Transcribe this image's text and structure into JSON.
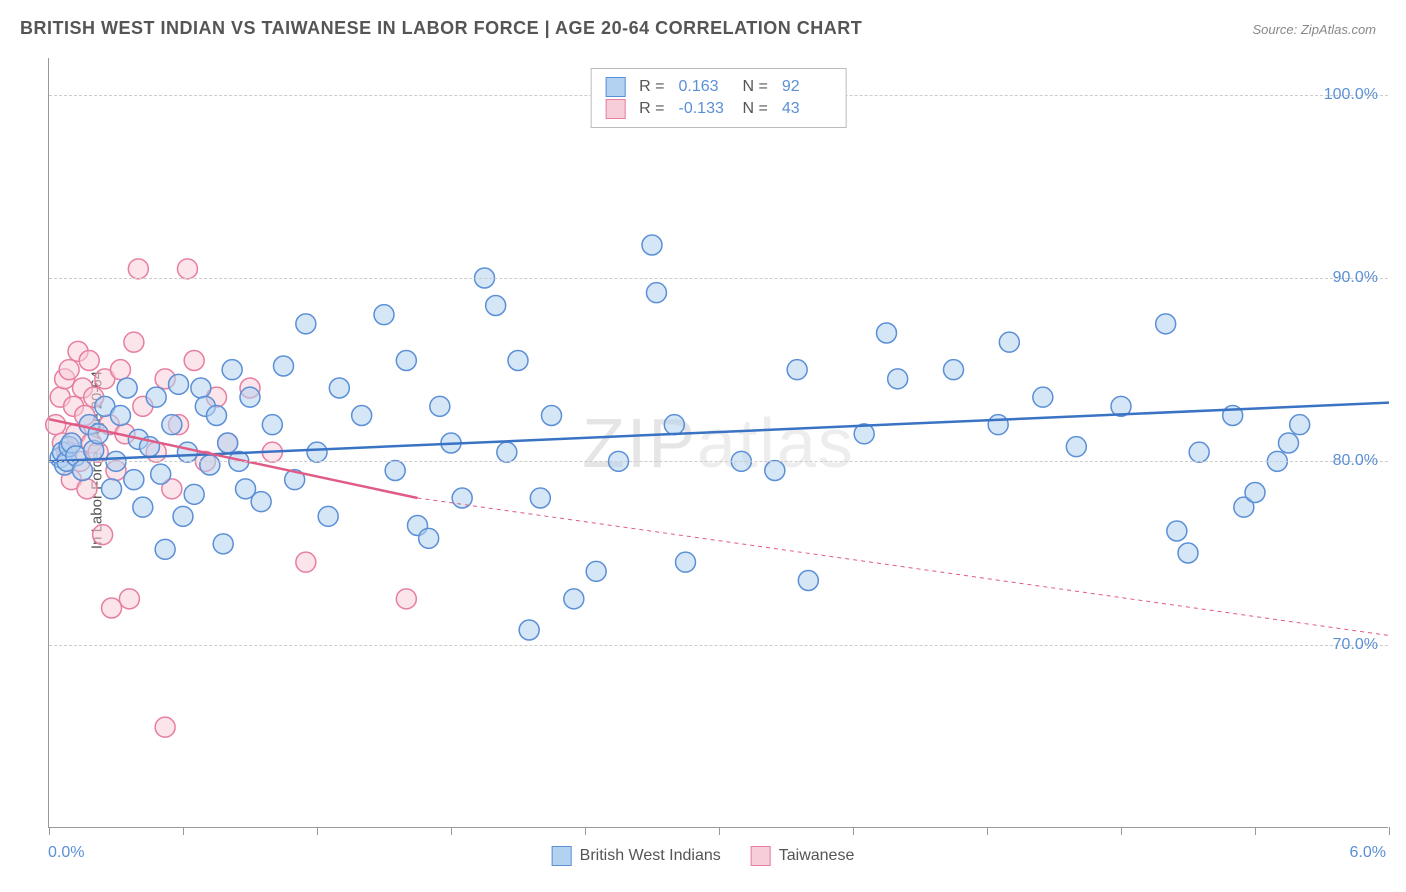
{
  "title": "BRITISH WEST INDIAN VS TAIWANESE IN LABOR FORCE | AGE 20-64 CORRELATION CHART",
  "source": "Source: ZipAtlas.com",
  "watermark_a": "ZIP",
  "watermark_b": "atlas",
  "y_axis_label": "In Labor Force | Age 20-64",
  "chart": {
    "type": "scatter",
    "xlim": [
      0.0,
      6.0
    ],
    "ylim": [
      60.0,
      102.0
    ],
    "y_ticks": [
      70.0,
      80.0,
      90.0,
      100.0
    ],
    "y_tick_labels": [
      "70.0%",
      "80.0%",
      "90.0%",
      "100.0%"
    ],
    "x_ticks": [
      0.0,
      0.6,
      1.2,
      1.8,
      2.4,
      3.0,
      3.6,
      4.2,
      4.8,
      5.4,
      6.0
    ],
    "x_tick_labels_shown": {
      "left": "0.0%",
      "right": "6.0%"
    },
    "background_color": "#ffffff",
    "grid_color": "#cccccc",
    "grid_dash": "4,4",
    "marker_radius": 10,
    "marker_stroke_width": 1.5,
    "trend_line_width": 2.5,
    "series": [
      {
        "name": "British West Indians",
        "fill": "#b3d1f0",
        "stroke": "#5b8fd6",
        "fill_opacity": 0.55,
        "r_value": "0.163",
        "n_value": "92",
        "trend": {
          "x1": 0.0,
          "y1": 80.0,
          "x2": 6.0,
          "y2": 83.2,
          "color": "#3a73c4",
          "dash": "none"
        },
        "points": [
          [
            0.05,
            80.2
          ],
          [
            0.06,
            80.5
          ],
          [
            0.07,
            79.8
          ],
          [
            0.08,
            80.0
          ],
          [
            0.09,
            80.8
          ],
          [
            0.1,
            81.0
          ],
          [
            0.12,
            80.3
          ],
          [
            0.15,
            79.5
          ],
          [
            0.18,
            82.0
          ],
          [
            0.2,
            80.6
          ],
          [
            0.22,
            81.5
          ],
          [
            0.25,
            83.0
          ],
          [
            0.28,
            78.5
          ],
          [
            0.3,
            80.0
          ],
          [
            0.32,
            82.5
          ],
          [
            0.35,
            84.0
          ],
          [
            0.38,
            79.0
          ],
          [
            0.4,
            81.2
          ],
          [
            0.42,
            77.5
          ],
          [
            0.45,
            80.8
          ],
          [
            0.48,
            83.5
          ],
          [
            0.5,
            79.3
          ],
          [
            0.52,
            75.2
          ],
          [
            0.55,
            82.0
          ],
          [
            0.58,
            84.2
          ],
          [
            0.6,
            77.0
          ],
          [
            0.62,
            80.5
          ],
          [
            0.65,
            78.2
          ],
          [
            0.68,
            84.0
          ],
          [
            0.7,
            83.0
          ],
          [
            0.72,
            79.8
          ],
          [
            0.75,
            82.5
          ],
          [
            0.78,
            75.5
          ],
          [
            0.8,
            81.0
          ],
          [
            0.82,
            85.0
          ],
          [
            0.85,
            80.0
          ],
          [
            0.88,
            78.5
          ],
          [
            0.9,
            83.5
          ],
          [
            0.95,
            77.8
          ],
          [
            1.0,
            82.0
          ],
          [
            1.05,
            85.2
          ],
          [
            1.1,
            79.0
          ],
          [
            1.15,
            87.5
          ],
          [
            1.2,
            80.5
          ],
          [
            1.25,
            77.0
          ],
          [
            1.3,
            84.0
          ],
          [
            1.4,
            82.5
          ],
          [
            1.5,
            88.0
          ],
          [
            1.55,
            79.5
          ],
          [
            1.6,
            85.5
          ],
          [
            1.65,
            76.5
          ],
          [
            1.7,
            75.8
          ],
          [
            1.75,
            83.0
          ],
          [
            1.8,
            81.0
          ],
          [
            1.85,
            78.0
          ],
          [
            1.95,
            90.0
          ],
          [
            2.0,
            88.5
          ],
          [
            2.05,
            80.5
          ],
          [
            2.1,
            85.5
          ],
          [
            2.15,
            70.8
          ],
          [
            2.2,
            78.0
          ],
          [
            2.25,
            82.5
          ],
          [
            2.35,
            72.5
          ],
          [
            2.45,
            74.0
          ],
          [
            2.55,
            80.0
          ],
          [
            2.7,
            91.8
          ],
          [
            2.72,
            89.2
          ],
          [
            2.8,
            82.0
          ],
          [
            2.85,
            74.5
          ],
          [
            3.1,
            80.0
          ],
          [
            3.25,
            79.5
          ],
          [
            3.35,
            85.0
          ],
          [
            3.4,
            73.5
          ],
          [
            3.65,
            81.5
          ],
          [
            3.75,
            87.0
          ],
          [
            3.8,
            84.5
          ],
          [
            4.05,
            85.0
          ],
          [
            4.25,
            82.0
          ],
          [
            4.3,
            86.5
          ],
          [
            4.45,
            83.5
          ],
          [
            4.6,
            80.8
          ],
          [
            4.8,
            83.0
          ],
          [
            5.0,
            87.5
          ],
          [
            5.05,
            76.2
          ],
          [
            5.1,
            75.0
          ],
          [
            5.15,
            80.5
          ],
          [
            5.3,
            82.5
          ],
          [
            5.35,
            77.5
          ],
          [
            5.4,
            78.3
          ],
          [
            5.5,
            80.0
          ],
          [
            5.55,
            81.0
          ],
          [
            5.6,
            82.0
          ]
        ]
      },
      {
        "name": "Taiwanese",
        "fill": "#f7cdd9",
        "stroke": "#e77ea0",
        "fill_opacity": 0.55,
        "r_value": "-0.133",
        "n_value": "43",
        "trend": {
          "x1": 0.0,
          "y1": 82.3,
          "x2": 1.65,
          "y2": 78.0,
          "color": "#e05b86",
          "dash": "none",
          "extend_dash_to_x": 6.0,
          "extend_dash_y": 70.5
        },
        "points": [
          [
            0.03,
            82.0
          ],
          [
            0.05,
            83.5
          ],
          [
            0.06,
            81.0
          ],
          [
            0.07,
            84.5
          ],
          [
            0.08,
            80.5
          ],
          [
            0.09,
            85.0
          ],
          [
            0.1,
            79.0
          ],
          [
            0.11,
            83.0
          ],
          [
            0.12,
            81.5
          ],
          [
            0.13,
            86.0
          ],
          [
            0.14,
            80.0
          ],
          [
            0.15,
            84.0
          ],
          [
            0.16,
            82.5
          ],
          [
            0.17,
            78.5
          ],
          [
            0.18,
            85.5
          ],
          [
            0.19,
            81.0
          ],
          [
            0.2,
            83.5
          ],
          [
            0.22,
            80.5
          ],
          [
            0.24,
            76.0
          ],
          [
            0.25,
            84.5
          ],
          [
            0.27,
            82.0
          ],
          [
            0.28,
            72.0
          ],
          [
            0.3,
            79.5
          ],
          [
            0.32,
            85.0
          ],
          [
            0.34,
            81.5
          ],
          [
            0.36,
            72.5
          ],
          [
            0.38,
            86.5
          ],
          [
            0.4,
            90.5
          ],
          [
            0.42,
            83.0
          ],
          [
            0.48,
            80.5
          ],
          [
            0.52,
            84.5
          ],
          [
            0.55,
            78.5
          ],
          [
            0.58,
            82.0
          ],
          [
            0.62,
            90.5
          ],
          [
            0.65,
            85.5
          ],
          [
            0.7,
            80.0
          ],
          [
            0.75,
            83.5
          ],
          [
            0.8,
            81.0
          ],
          [
            0.52,
            65.5
          ],
          [
            0.9,
            84.0
          ],
          [
            1.0,
            80.5
          ],
          [
            1.15,
            74.5
          ],
          [
            1.6,
            72.5
          ]
        ]
      }
    ]
  },
  "legend_top": {
    "r_label": "R =",
    "n_label": "N ="
  },
  "legend_bottom": {
    "items": [
      "British West Indians",
      "Taiwanese"
    ]
  }
}
